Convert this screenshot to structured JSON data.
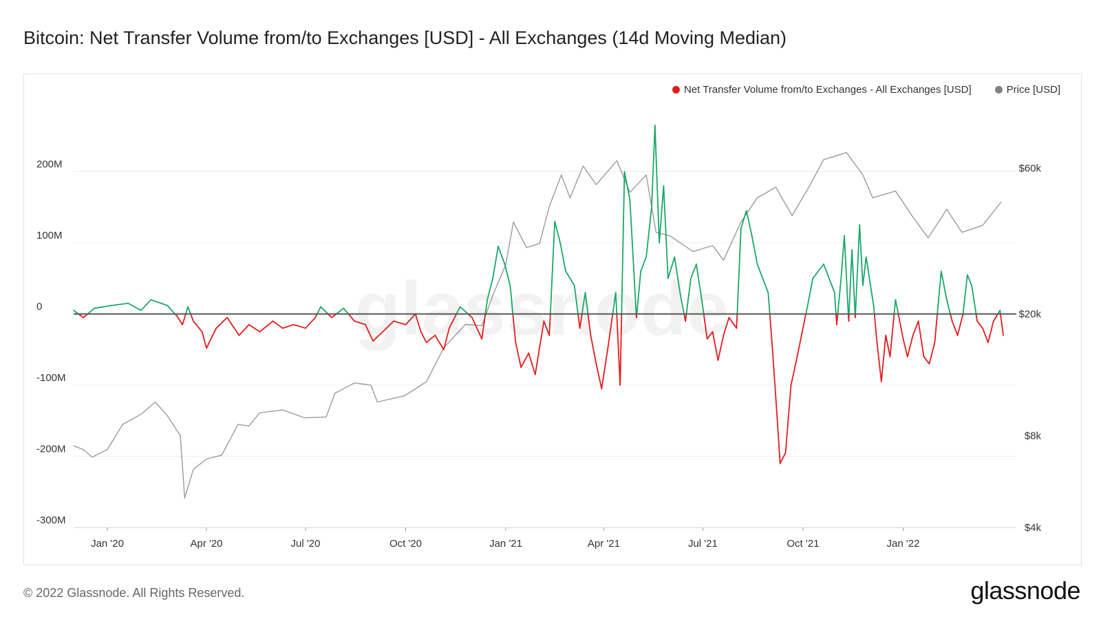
{
  "title": "Bitcoin: Net Transfer Volume from/to Exchanges [USD] - All Exchanges (14d Moving Median)",
  "footer": {
    "copyright": "© 2022 Glassnode. All Rights Reserved.",
    "brand": "glassnode"
  },
  "watermark": "glassnode",
  "colors": {
    "positive": "#1aa66a",
    "negative": "#e31b1b",
    "price": "#9a9a9a",
    "zero_line": "#555555",
    "grid": "#ececec"
  },
  "chart_data": {
    "type": "line",
    "legend_placement": "top-right",
    "grid": true,
    "x_axis": {
      "range": [
        "2019-12-01",
        "2022-04-15"
      ],
      "ticks": [
        {
          "date": "2020-01-01",
          "label": "Jan '20"
        },
        {
          "date": "2020-04-01",
          "label": "Apr '20"
        },
        {
          "date": "2020-07-01",
          "label": "Jul '20"
        },
        {
          "date": "2020-10-01",
          "label": "Oct '20"
        },
        {
          "date": "2021-01-01",
          "label": "Jan '21"
        },
        {
          "date": "2021-04-01",
          "label": "Apr '21"
        },
        {
          "date": "2021-07-01",
          "label": "Jul '21"
        },
        {
          "date": "2021-10-01",
          "label": "Oct '21"
        },
        {
          "date": "2022-01-01",
          "label": "Jan '22"
        }
      ]
    },
    "y_left": {
      "range": [
        -300000000,
        300000000
      ],
      "ticks": [
        {
          "value": 200000000,
          "label": "200M"
        },
        {
          "value": 100000000,
          "label": "100M"
        },
        {
          "value": 0,
          "label": "0"
        },
        {
          "value": -100000000,
          "label": "-100M"
        },
        {
          "value": -200000000,
          "label": "-200M"
        },
        {
          "value": -300000000,
          "label": "-300M"
        }
      ]
    },
    "y_right": {
      "scale": "log",
      "range": [
        4000,
        100000
      ],
      "ticks": [
        {
          "value": 60000,
          "label": "$60k"
        },
        {
          "value": 20000,
          "label": "$20k"
        },
        {
          "value": 8000,
          "label": "$8k"
        },
        {
          "value": 4000,
          "label": "$4k"
        }
      ]
    },
    "series": [
      {
        "name": "Net Transfer Volume from/to Exchanges - All Exchanges [USD]",
        "axis": "left",
        "color": "#e31b1b",
        "positive_color": "#1aa66a",
        "points": [
          [
            "2019-12-01",
            5000000
          ],
          [
            "2019-12-10",
            -5000000
          ],
          [
            "2019-12-20",
            8000000
          ],
          [
            "2020-01-05",
            12000000
          ],
          [
            "2020-01-20",
            15000000
          ],
          [
            "2020-02-01",
            5000000
          ],
          [
            "2020-02-10",
            20000000
          ],
          [
            "2020-02-25",
            12000000
          ],
          [
            "2020-03-05",
            -3000000
          ],
          [
            "2020-03-10",
            -15000000
          ],
          [
            "2020-03-15",
            10000000
          ],
          [
            "2020-03-20",
            -10000000
          ],
          [
            "2020-03-28",
            -25000000
          ],
          [
            "2020-04-01",
            -48000000
          ],
          [
            "2020-04-10",
            -20000000
          ],
          [
            "2020-04-20",
            -5000000
          ],
          [
            "2020-05-01",
            -30000000
          ],
          [
            "2020-05-10",
            -15000000
          ],
          [
            "2020-05-20",
            -25000000
          ],
          [
            "2020-06-01",
            -10000000
          ],
          [
            "2020-06-10",
            -20000000
          ],
          [
            "2020-06-20",
            -15000000
          ],
          [
            "2020-07-01",
            -20000000
          ],
          [
            "2020-07-10",
            -5000000
          ],
          [
            "2020-07-15",
            10000000
          ],
          [
            "2020-07-25",
            -5000000
          ],
          [
            "2020-08-05",
            8000000
          ],
          [
            "2020-08-15",
            -10000000
          ],
          [
            "2020-08-25",
            -15000000
          ],
          [
            "2020-09-01",
            -38000000
          ],
          [
            "2020-09-10",
            -25000000
          ],
          [
            "2020-09-20",
            -10000000
          ],
          [
            "2020-10-01",
            -15000000
          ],
          [
            "2020-10-10",
            0
          ],
          [
            "2020-10-15",
            -25000000
          ],
          [
            "2020-10-20",
            -40000000
          ],
          [
            "2020-10-28",
            -30000000
          ],
          [
            "2020-11-05",
            -50000000
          ],
          [
            "2020-11-10",
            -20000000
          ],
          [
            "2020-11-20",
            10000000
          ],
          [
            "2020-12-01",
            -5000000
          ],
          [
            "2020-12-10",
            -35000000
          ],
          [
            "2020-12-15",
            20000000
          ],
          [
            "2020-12-20",
            50000000
          ],
          [
            "2020-12-25",
            95000000
          ],
          [
            "2020-12-31",
            70000000
          ],
          [
            "2021-01-05",
            40000000
          ],
          [
            "2021-01-10",
            -40000000
          ],
          [
            "2021-01-15",
            -75000000
          ],
          [
            "2021-01-22",
            -55000000
          ],
          [
            "2021-01-28",
            -85000000
          ],
          [
            "2021-02-05",
            -10000000
          ],
          [
            "2021-02-10",
            -30000000
          ],
          [
            "2021-02-15",
            130000000
          ],
          [
            "2021-02-20",
            100000000
          ],
          [
            "2021-02-25",
            60000000
          ],
          [
            "2021-03-05",
            40000000
          ],
          [
            "2021-03-10",
            -20000000
          ],
          [
            "2021-03-15",
            30000000
          ],
          [
            "2021-03-20",
            -30000000
          ],
          [
            "2021-03-25",
            -70000000
          ],
          [
            "2021-03-30",
            -105000000
          ],
          [
            "2021-04-05",
            -45000000
          ],
          [
            "2021-04-12",
            30000000
          ],
          [
            "2021-04-16",
            -100000000
          ],
          [
            "2021-04-20",
            200000000
          ],
          [
            "2021-04-25",
            160000000
          ],
          [
            "2021-05-01",
            -5000000
          ],
          [
            "2021-05-05",
            60000000
          ],
          [
            "2021-05-10",
            80000000
          ],
          [
            "2021-05-15",
            150000000
          ],
          [
            "2021-05-18",
            265000000
          ],
          [
            "2021-05-22",
            100000000
          ],
          [
            "2021-05-26",
            180000000
          ],
          [
            "2021-05-30",
            50000000
          ],
          [
            "2021-06-05",
            80000000
          ],
          [
            "2021-06-10",
            30000000
          ],
          [
            "2021-06-15",
            -10000000
          ],
          [
            "2021-06-20",
            50000000
          ],
          [
            "2021-06-25",
            70000000
          ],
          [
            "2021-06-30",
            20000000
          ],
          [
            "2021-07-05",
            -35000000
          ],
          [
            "2021-07-10",
            -25000000
          ],
          [
            "2021-07-15",
            -65000000
          ],
          [
            "2021-07-20",
            -30000000
          ],
          [
            "2021-07-25",
            -5000000
          ],
          [
            "2021-08-01",
            -20000000
          ],
          [
            "2021-08-05",
            120000000
          ],
          [
            "2021-08-10",
            145000000
          ],
          [
            "2021-08-15",
            110000000
          ],
          [
            "2021-08-20",
            70000000
          ],
          [
            "2021-08-25",
            50000000
          ],
          [
            "2021-08-30",
            30000000
          ],
          [
            "2021-09-03",
            -50000000
          ],
          [
            "2021-09-07",
            -140000000
          ],
          [
            "2021-09-10",
            -210000000
          ],
          [
            "2021-09-15",
            -195000000
          ],
          [
            "2021-09-20",
            -100000000
          ],
          [
            "2021-09-25",
            -65000000
          ],
          [
            "2021-10-01",
            -20000000
          ],
          [
            "2021-10-05",
            10000000
          ],
          [
            "2021-10-10",
            50000000
          ],
          [
            "2021-10-20",
            70000000
          ],
          [
            "2021-10-25",
            50000000
          ],
          [
            "2021-10-30",
            30000000
          ],
          [
            "2021-11-01",
            -15000000
          ],
          [
            "2021-11-05",
            50000000
          ],
          [
            "2021-11-08",
            110000000
          ],
          [
            "2021-11-12",
            -10000000
          ],
          [
            "2021-11-15",
            90000000
          ],
          [
            "2021-11-18",
            -5000000
          ],
          [
            "2021-11-22",
            125000000
          ],
          [
            "2021-11-25",
            40000000
          ],
          [
            "2021-11-28",
            80000000
          ],
          [
            "2021-12-05",
            10000000
          ],
          [
            "2021-12-08",
            -40000000
          ],
          [
            "2021-12-12",
            -95000000
          ],
          [
            "2021-12-16",
            -30000000
          ],
          [
            "2021-12-20",
            -60000000
          ],
          [
            "2021-12-25",
            20000000
          ],
          [
            "2022-01-01",
            -35000000
          ],
          [
            "2022-01-05",
            -60000000
          ],
          [
            "2022-01-10",
            -30000000
          ],
          [
            "2022-01-15",
            -10000000
          ],
          [
            "2022-01-20",
            -60000000
          ],
          [
            "2022-01-25",
            -70000000
          ],
          [
            "2022-01-30",
            -40000000
          ],
          [
            "2022-02-05",
            60000000
          ],
          [
            "2022-02-10",
            20000000
          ],
          [
            "2022-02-15",
            -10000000
          ],
          [
            "2022-02-20",
            -30000000
          ],
          [
            "2022-02-25",
            0
          ],
          [
            "2022-03-01",
            55000000
          ],
          [
            "2022-03-05",
            40000000
          ],
          [
            "2022-03-10",
            -10000000
          ],
          [
            "2022-03-15",
            -20000000
          ],
          [
            "2022-03-20",
            -40000000
          ],
          [
            "2022-03-25",
            -10000000
          ],
          [
            "2022-03-31",
            5000000
          ],
          [
            "2022-04-03",
            -30000000
          ]
        ]
      },
      {
        "name": "Price [USD]",
        "axis": "right",
        "color": "#9a9a9a",
        "points": [
          [
            "2019-12-01",
            7400
          ],
          [
            "2019-12-10",
            7200
          ],
          [
            "2019-12-18",
            6800
          ],
          [
            "2020-01-01",
            7200
          ],
          [
            "2020-01-15",
            8700
          ],
          [
            "2020-02-01",
            9400
          ],
          [
            "2020-02-14",
            10300
          ],
          [
            "2020-02-25",
            9300
          ],
          [
            "2020-03-08",
            8000
          ],
          [
            "2020-03-12",
            5000
          ],
          [
            "2020-03-20",
            6200
          ],
          [
            "2020-04-01",
            6700
          ],
          [
            "2020-04-15",
            6900
          ],
          [
            "2020-04-30",
            8700
          ],
          [
            "2020-05-10",
            8600
          ],
          [
            "2020-05-20",
            9500
          ],
          [
            "2020-06-10",
            9700
          ],
          [
            "2020-06-30",
            9150
          ],
          [
            "2020-07-20",
            9200
          ],
          [
            "2020-07-28",
            11000
          ],
          [
            "2020-08-15",
            11900
          ],
          [
            "2020-08-30",
            11700
          ],
          [
            "2020-09-05",
            10300
          ],
          [
            "2020-09-30",
            10800
          ],
          [
            "2020-10-20",
            12000
          ],
          [
            "2020-11-05",
            15500
          ],
          [
            "2020-11-25",
            18500
          ],
          [
            "2020-12-10",
            18300
          ],
          [
            "2020-12-20",
            23000
          ],
          [
            "2021-01-01",
            29000
          ],
          [
            "2021-01-08",
            40000
          ],
          [
            "2021-01-20",
            33000
          ],
          [
            "2021-02-01",
            34000
          ],
          [
            "2021-02-10",
            45000
          ],
          [
            "2021-02-21",
            57000
          ],
          [
            "2021-03-01",
            48000
          ],
          [
            "2021-03-13",
            61000
          ],
          [
            "2021-03-25",
            53000
          ],
          [
            "2021-04-13",
            63500
          ],
          [
            "2021-04-25",
            50000
          ],
          [
            "2021-05-10",
            57000
          ],
          [
            "2021-05-19",
            37000
          ],
          [
            "2021-06-01",
            36000
          ],
          [
            "2021-06-22",
            32000
          ],
          [
            "2021-07-10",
            33500
          ],
          [
            "2021-07-20",
            30000
          ],
          [
            "2021-08-05",
            40000
          ],
          [
            "2021-08-20",
            48000
          ],
          [
            "2021-09-06",
            52000
          ],
          [
            "2021-09-21",
            42000
          ],
          [
            "2021-10-05",
            51000
          ],
          [
            "2021-10-20",
            64000
          ],
          [
            "2021-11-10",
            67500
          ],
          [
            "2021-11-25",
            57000
          ],
          [
            "2021-12-04",
            48000
          ],
          [
            "2021-12-25",
            50500
          ],
          [
            "2022-01-10",
            41500
          ],
          [
            "2022-01-24",
            35500
          ],
          [
            "2022-02-10",
            44000
          ],
          [
            "2022-02-24",
            37000
          ],
          [
            "2022-03-15",
            39000
          ],
          [
            "2022-04-01",
            46500
          ]
        ]
      }
    ]
  }
}
